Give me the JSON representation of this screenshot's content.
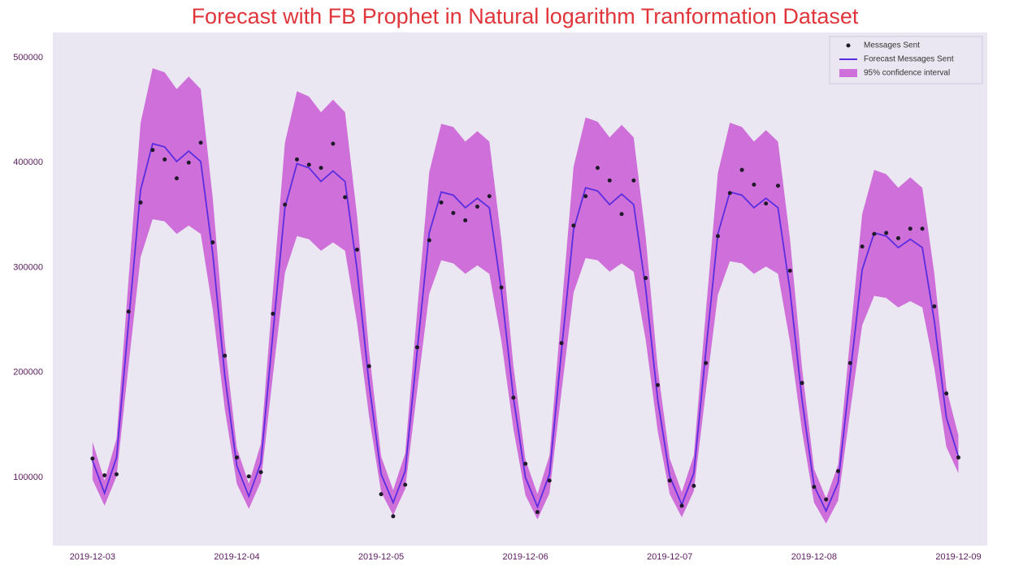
{
  "chart_data": {
    "type": "line",
    "title": "Forecast with FB Prophet in Natural logarithm Tranformation Dataset",
    "x": [
      0,
      2,
      4,
      6,
      8,
      10,
      12,
      14,
      16,
      18,
      20,
      22,
      24,
      26,
      28,
      30,
      32,
      34,
      36,
      38,
      40,
      42,
      44,
      46,
      48,
      50,
      52,
      54,
      56,
      58,
      60,
      62,
      64,
      66,
      68,
      70,
      72,
      74,
      76,
      78,
      80,
      82,
      84,
      86,
      88,
      90,
      92,
      94,
      96,
      98,
      100,
      102,
      104,
      106,
      108,
      110,
      112,
      114,
      116,
      118,
      120,
      122,
      124,
      126,
      128,
      130,
      132,
      134,
      136,
      138,
      140,
      142,
      144
    ],
    "xlim": [
      -6.6,
      148.8
    ],
    "xticks": [
      {
        "value": 0,
        "label": "2019-12-03"
      },
      {
        "value": 24,
        "label": "2019-12-04"
      },
      {
        "value": 48,
        "label": "2019-12-05"
      },
      {
        "value": 72,
        "label": "2019-12-06"
      },
      {
        "value": 96,
        "label": "2019-12-07"
      },
      {
        "value": 120,
        "label": "2019-12-08"
      },
      {
        "value": 144,
        "label": "2019-12-09"
      }
    ],
    "ylim": [
      35000,
      524000
    ],
    "yticks": [
      100000,
      200000,
      300000,
      400000,
      500000
    ],
    "grid": false,
    "legend": "upper right",
    "series": [
      {
        "name": "Messages Sent",
        "kind": "scatter",
        "color": "#1e1a2a",
        "values": [
          118000,
          102000,
          103000,
          258000,
          362000,
          412000,
          403000,
          385000,
          400000,
          419000,
          324000,
          216000,
          119000,
          101000,
          105000,
          256000,
          360000,
          403000,
          398000,
          395000,
          418000,
          367000,
          317000,
          206000,
          84000,
          63000,
          93000,
          224000,
          326000,
          362000,
          352000,
          345000,
          358000,
          368000,
          281000,
          176000,
          113000,
          67000,
          97000,
          228000,
          340000,
          368000,
          395000,
          383000,
          351000,
          383000,
          290000,
          188000,
          97000,
          73000,
          92000,
          209000,
          330000,
          371000,
          393000,
          379000,
          361000,
          378000,
          297000,
          190000,
          91000,
          79000,
          106000,
          209000,
          320000,
          332000,
          333000,
          328000,
          337000,
          337000,
          263000,
          180000,
          119000
        ]
      },
      {
        "name": "Forecast Messages Sent",
        "kind": "line",
        "color": "#5a2ee0",
        "values": [
          116000,
          85000,
          119000,
          248000,
          374000,
          418000,
          415000,
          401000,
          411000,
          401000,
          313000,
          197000,
          111000,
          82000,
          114000,
          237000,
          357000,
          399000,
          395000,
          382000,
          392000,
          382000,
          298000,
          189000,
          103000,
          76000,
          106000,
          221000,
          333000,
          372000,
          369000,
          357000,
          366000,
          357000,
          278000,
          176000,
          100000,
          72000,
          103000,
          221000,
          336000,
          376000,
          373000,
          360000,
          370000,
          360000,
          280000,
          174000,
          101000,
          74000,
          104000,
          220000,
          332000,
          372000,
          369000,
          357000,
          366000,
          357000,
          278000,
          174000,
          92000,
          68000,
          95000,
          198000,
          298000,
          333000,
          330000,
          319000,
          327000,
          319000,
          249000,
          157000,
          120000
        ]
      },
      {
        "name": "95% confidence interval",
        "kind": "band",
        "color": "#cf6fd9",
        "lower": [
          98000,
          73000,
          101000,
          207000,
          310000,
          346000,
          344000,
          332000,
          340000,
          332000,
          260000,
          165000,
          94000,
          70000,
          96000,
          197000,
          295000,
          330000,
          327000,
          316000,
          324000,
          316000,
          247000,
          158000,
          86000,
          64000,
          89000,
          183000,
          275000,
          307000,
          304000,
          294000,
          302000,
          294000,
          230000,
          146000,
          83000,
          60000,
          85000,
          182000,
          276000,
          309000,
          307000,
          296000,
          304000,
          296000,
          231000,
          144000,
          84000,
          62000,
          87000,
          182000,
          274000,
          306000,
          304000,
          294000,
          301000,
          294000,
          229000,
          144000,
          76000,
          56000,
          78000,
          163000,
          245000,
          273000,
          271000,
          262000,
          268000,
          262000,
          204000,
          129000,
          104000
        ],
        "upper": [
          134000,
          97000,
          137000,
          289000,
          438000,
          490000,
          486000,
          470000,
          482000,
          470000,
          366000,
          229000,
          128000,
          94000,
          132000,
          277000,
          419000,
          468000,
          463000,
          448000,
          460000,
          448000,
          349000,
          220000,
          120000,
          88000,
          123000,
          259000,
          391000,
          437000,
          434000,
          420000,
          430000,
          420000,
          326000,
          206000,
          117000,
          84000,
          121000,
          260000,
          396000,
          443000,
          439000,
          424000,
          436000,
          424000,
          329000,
          204000,
          118000,
          86000,
          121000,
          258000,
          390000,
          438000,
          434000,
          420000,
          431000,
          420000,
          327000,
          204000,
          108000,
          80000,
          112000,
          233000,
          351000,
          393000,
          389000,
          376000,
          386000,
          376000,
          294000,
          185000,
          140000
        ]
      }
    ],
    "background": "#eae7f2",
    "title_color": "#e0353a"
  }
}
